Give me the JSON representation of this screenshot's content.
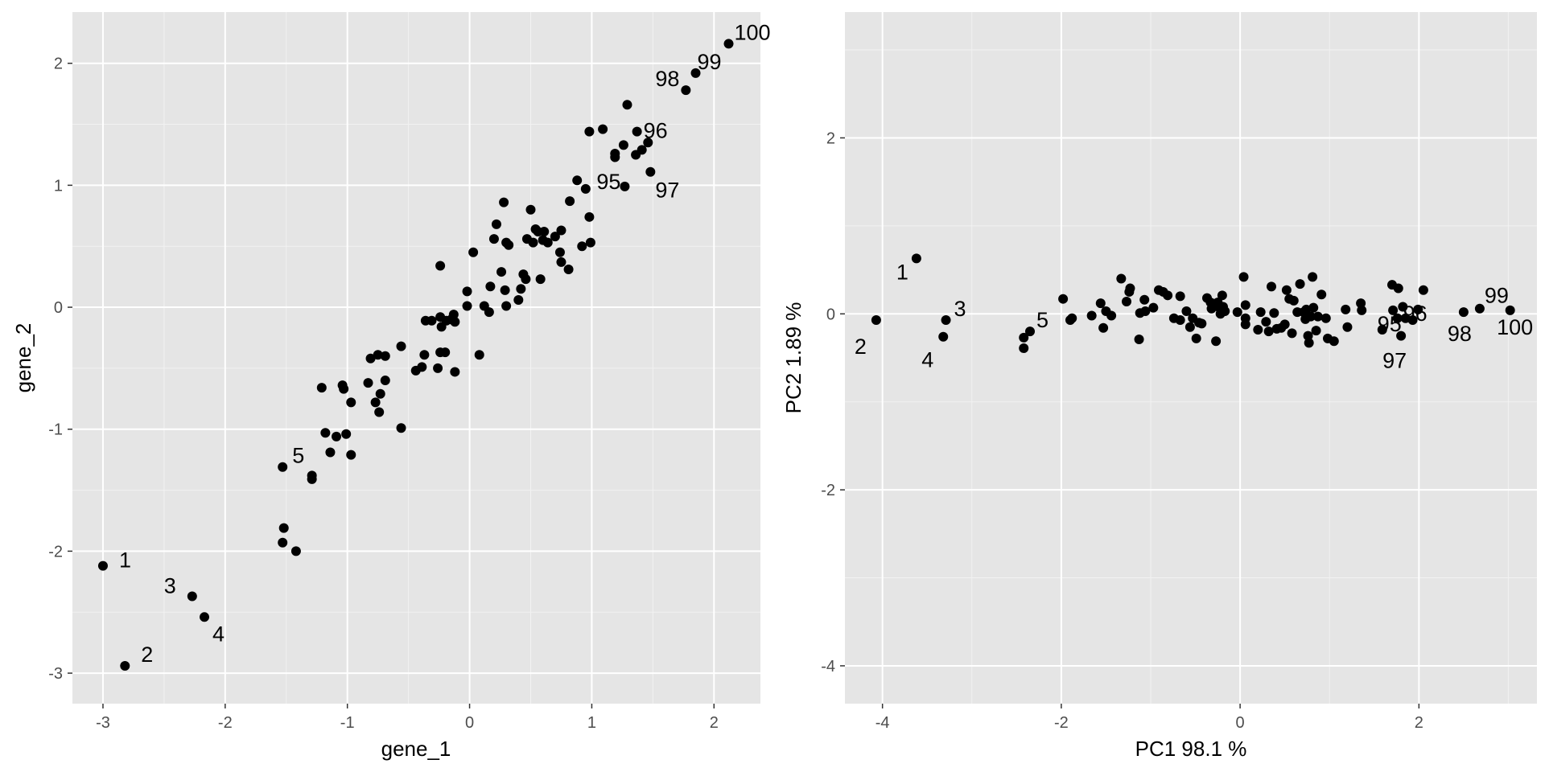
{
  "chart_data": [
    {
      "type": "scatter",
      "xlabel": "gene_1",
      "ylabel": "gene_2",
      "xlim": [
        -3.25,
        2.38
      ],
      "ylim": [
        -3.25,
        2.42
      ],
      "xticks": [
        -3,
        -2,
        -1,
        0,
        1,
        2
      ],
      "yticks": [
        -3,
        -2,
        -1,
        0,
        1,
        2
      ],
      "grid": true,
      "points": [
        {
          "x": -3.0,
          "y": -2.12,
          "label": "1"
        },
        {
          "x": -2.82,
          "y": -2.94,
          "label": "2"
        },
        {
          "x": -2.27,
          "y": -2.37,
          "label": "3"
        },
        {
          "x": -2.17,
          "y": -2.54,
          "label": "4"
        },
        {
          "x": -1.53,
          "y": -1.31,
          "label": "5"
        },
        {
          "x": 1.27,
          "y": 0.99,
          "label": "95"
        },
        {
          "x": 1.37,
          "y": 1.44,
          "label": "96"
        },
        {
          "x": 1.48,
          "y": 1.11,
          "label": "97"
        },
        {
          "x": 1.77,
          "y": 1.78,
          "label": "98"
        },
        {
          "x": 1.85,
          "y": 1.92,
          "label": "99"
        },
        {
          "x": 2.12,
          "y": 2.16,
          "label": "100"
        },
        {
          "x": -1.52,
          "y": -1.81
        },
        {
          "x": -1.53,
          "y": -1.93
        },
        {
          "x": -1.42,
          "y": -2.0
        },
        {
          "x": -1.29,
          "y": -1.38
        },
        {
          "x": -1.29,
          "y": -1.41
        },
        {
          "x": -1.21,
          "y": -0.66
        },
        {
          "x": -1.18,
          "y": -1.03
        },
        {
          "x": -1.14,
          "y": -1.19
        },
        {
          "x": -1.09,
          "y": -1.06
        },
        {
          "x": -1.04,
          "y": -0.64
        },
        {
          "x": -1.03,
          "y": -0.67
        },
        {
          "x": -1.01,
          "y": -1.04
        },
        {
          "x": -0.97,
          "y": -0.78
        },
        {
          "x": -0.97,
          "y": -1.21
        },
        {
          "x": -0.83,
          "y": -0.62
        },
        {
          "x": -0.81,
          "y": -0.42
        },
        {
          "x": -0.77,
          "y": -0.78
        },
        {
          "x": -0.75,
          "y": -0.39
        },
        {
          "x": -0.74,
          "y": -0.86
        },
        {
          "x": -0.73,
          "y": -0.71
        },
        {
          "x": -0.69,
          "y": -0.6
        },
        {
          "x": -0.69,
          "y": -0.4
        },
        {
          "x": -0.56,
          "y": -0.99
        },
        {
          "x": -0.56,
          "y": -0.32
        },
        {
          "x": -0.44,
          "y": -0.52
        },
        {
          "x": -0.39,
          "y": -0.49
        },
        {
          "x": -0.37,
          "y": -0.39
        },
        {
          "x": -0.36,
          "y": -0.11
        },
        {
          "x": -0.31,
          "y": -0.11
        },
        {
          "x": -0.26,
          "y": -0.5
        },
        {
          "x": -0.24,
          "y": -0.37
        },
        {
          "x": -0.24,
          "y": -0.08
        },
        {
          "x": -0.23,
          "y": -0.16
        },
        {
          "x": -0.2,
          "y": -0.37
        },
        {
          "x": -0.19,
          "y": -0.11
        },
        {
          "x": -0.15,
          "y": -0.1
        },
        {
          "x": -0.13,
          "y": -0.06
        },
        {
          "x": -0.12,
          "y": -0.53
        },
        {
          "x": -0.12,
          "y": -0.12
        },
        {
          "x": -0.24,
          "y": 0.34
        },
        {
          "x": -0.02,
          "y": 0.13
        },
        {
          "x": -0.02,
          "y": 0.01
        },
        {
          "x": 0.03,
          "y": 0.45
        },
        {
          "x": 0.08,
          "y": -0.39
        },
        {
          "x": 0.12,
          "y": 0.01
        },
        {
          "x": 0.16,
          "y": -0.04
        },
        {
          "x": 0.17,
          "y": 0.17
        },
        {
          "x": 0.2,
          "y": 0.56
        },
        {
          "x": 0.22,
          "y": 0.68
        },
        {
          "x": 0.26,
          "y": 0.29
        },
        {
          "x": 0.28,
          "y": 0.86
        },
        {
          "x": 0.29,
          "y": 0.14
        },
        {
          "x": 0.3,
          "y": 0.01
        },
        {
          "x": 0.3,
          "y": 0.53
        },
        {
          "x": 0.32,
          "y": 0.51
        },
        {
          "x": 0.4,
          "y": 0.06
        },
        {
          "x": 0.42,
          "y": 0.15
        },
        {
          "x": 0.44,
          "y": 0.27
        },
        {
          "x": 0.46,
          "y": 0.23
        },
        {
          "x": 0.47,
          "y": 0.56
        },
        {
          "x": 0.5,
          "y": 0.8
        },
        {
          "x": 0.52,
          "y": 0.53
        },
        {
          "x": 0.54,
          "y": 0.64
        },
        {
          "x": 0.56,
          "y": 0.62
        },
        {
          "x": 0.58,
          "y": 0.23
        },
        {
          "x": 0.6,
          "y": 0.55
        },
        {
          "x": 0.61,
          "y": 0.62
        },
        {
          "x": 0.64,
          "y": 0.53
        },
        {
          "x": 0.7,
          "y": 0.58
        },
        {
          "x": 0.74,
          "y": 0.45
        },
        {
          "x": 0.75,
          "y": 0.63
        },
        {
          "x": 0.75,
          "y": 0.37
        },
        {
          "x": 0.81,
          "y": 0.31
        },
        {
          "x": 0.82,
          "y": 0.87
        },
        {
          "x": 0.88,
          "y": 1.04
        },
        {
          "x": 0.92,
          "y": 0.5
        },
        {
          "x": 0.95,
          "y": 0.97
        },
        {
          "x": 0.98,
          "y": 1.44
        },
        {
          "x": 0.98,
          "y": 0.74
        },
        {
          "x": 0.99,
          "y": 0.53
        },
        {
          "x": 1.09,
          "y": 1.46
        },
        {
          "x": 1.19,
          "y": 1.26
        },
        {
          "x": 1.19,
          "y": 1.23
        },
        {
          "x": 1.26,
          "y": 1.33
        },
        {
          "x": 1.29,
          "y": 1.66
        },
        {
          "x": 1.36,
          "y": 1.25
        },
        {
          "x": 1.41,
          "y": 1.29
        },
        {
          "x": 1.46,
          "y": 1.35
        }
      ]
    },
    {
      "type": "scatter",
      "xlabel": "PC1  98.1 %",
      "ylabel": "PC2  1.89 %",
      "xlim": [
        -4.42,
        3.32
      ],
      "ylim": [
        -4.43,
        3.43
      ],
      "xticks": [
        -4,
        -2,
        0,
        2
      ],
      "yticks": [
        -4,
        -2,
        0,
        2
      ],
      "grid": true,
      "points": [
        {
          "x": -3.62,
          "y": 0.63,
          "label": "1"
        },
        {
          "x": -4.07,
          "y": -0.07,
          "label": "2"
        },
        {
          "x": -3.29,
          "y": -0.07,
          "label": "3"
        },
        {
          "x": -3.32,
          "y": -0.26,
          "label": "4"
        },
        {
          "x": -2.35,
          "y": -0.2,
          "label": "5"
        },
        {
          "x": 1.59,
          "y": -0.18,
          "label": "95"
        },
        {
          "x": 1.76,
          "y": -0.05,
          "label": "96"
        },
        {
          "x": 1.8,
          "y": -0.25,
          "label": "97"
        },
        {
          "x": 2.5,
          "y": 0.02,
          "label": "98"
        },
        {
          "x": 2.68,
          "y": 0.06,
          "label": "99"
        },
        {
          "x": 3.02,
          "y": 0.04,
          "label": "100"
        },
        {
          "x": -2.42,
          "y": -0.27
        },
        {
          "x": -2.42,
          "y": -0.39
        },
        {
          "x": -1.98,
          "y": 0.17
        },
        {
          "x": -1.9,
          "y": -0.07
        },
        {
          "x": -1.88,
          "y": -0.05
        },
        {
          "x": -1.66,
          "y": -0.02
        },
        {
          "x": -1.56,
          "y": 0.12
        },
        {
          "x": -1.53,
          "y": -0.16
        },
        {
          "x": -1.5,
          "y": 0.03
        },
        {
          "x": -1.44,
          "y": -0.02
        },
        {
          "x": -1.33,
          "y": 0.4
        },
        {
          "x": -1.27,
          "y": 0.14
        },
        {
          "x": -1.24,
          "y": 0.25
        },
        {
          "x": -1.23,
          "y": 0.29
        },
        {
          "x": -1.13,
          "y": -0.29
        },
        {
          "x": -1.12,
          "y": 0.01
        },
        {
          "x": -1.07,
          "y": 0.16
        },
        {
          "x": -1.06,
          "y": 0.03
        },
        {
          "x": -0.97,
          "y": 0.07
        },
        {
          "x": -0.91,
          "y": 0.27
        },
        {
          "x": -0.86,
          "y": 0.25
        },
        {
          "x": -0.81,
          "y": 0.21
        },
        {
          "x": -0.74,
          "y": -0.05
        },
        {
          "x": -0.67,
          "y": -0.07
        },
        {
          "x": -0.67,
          "y": 0.2
        },
        {
          "x": -0.6,
          "y": 0.03
        },
        {
          "x": -0.56,
          "y": -0.15
        },
        {
          "x": -0.53,
          "y": -0.05
        },
        {
          "x": -0.49,
          "y": -0.28
        },
        {
          "x": -0.46,
          "y": -0.1
        },
        {
          "x": -0.43,
          "y": -0.11
        },
        {
          "x": -0.37,
          "y": 0.18
        },
        {
          "x": -0.33,
          "y": 0.13
        },
        {
          "x": -0.32,
          "y": 0.06
        },
        {
          "x": -0.27,
          "y": -0.31
        },
        {
          "x": -0.25,
          "y": 0.13
        },
        {
          "x": -0.23,
          "y": 0.07
        },
        {
          "x": -0.22,
          "y": 0.0
        },
        {
          "x": -0.2,
          "y": 0.21
        },
        {
          "x": -0.19,
          "y": 0.08
        },
        {
          "x": -0.17,
          "y": 0.03
        },
        {
          "x": -0.03,
          "y": 0.02
        },
        {
          "x": 0.04,
          "y": 0.42
        },
        {
          "x": 0.06,
          "y": -0.12
        },
        {
          "x": 0.06,
          "y": -0.05
        },
        {
          "x": 0.06,
          "y": 0.1
        },
        {
          "x": 0.2,
          "y": -0.18
        },
        {
          "x": 0.23,
          "y": 0.02
        },
        {
          "x": 0.29,
          "y": -0.09
        },
        {
          "x": 0.32,
          "y": -0.2
        },
        {
          "x": 0.35,
          "y": 0.31
        },
        {
          "x": 0.38,
          "y": 0.01
        },
        {
          "x": 0.41,
          "y": -0.17
        },
        {
          "x": 0.46,
          "y": -0.16
        },
        {
          "x": 0.5,
          "y": -0.12
        },
        {
          "x": 0.52,
          "y": 0.27
        },
        {
          "x": 0.55,
          "y": 0.17
        },
        {
          "x": 0.58,
          "y": -0.22
        },
        {
          "x": 0.6,
          "y": 0.15
        },
        {
          "x": 0.64,
          "y": 0.02
        },
        {
          "x": 0.67,
          "y": 0.34
        },
        {
          "x": 0.71,
          "y": 0.02
        },
        {
          "x": 0.73,
          "y": -0.06
        },
        {
          "x": 0.74,
          "y": 0.05
        },
        {
          "x": 0.76,
          "y": -0.25
        },
        {
          "x": 0.77,
          "y": -0.33
        },
        {
          "x": 0.79,
          "y": -0.03
        },
        {
          "x": 0.81,
          "y": 0.42
        },
        {
          "x": 0.82,
          "y": 0.07
        },
        {
          "x": 0.85,
          "y": -0.19
        },
        {
          "x": 0.87,
          "y": -0.03
        },
        {
          "x": 0.91,
          "y": 0.22
        },
        {
          "x": 0.96,
          "y": -0.05
        },
        {
          "x": 0.98,
          "y": -0.28
        },
        {
          "x": 1.05,
          "y": -0.31
        },
        {
          "x": 1.18,
          "y": 0.05
        },
        {
          "x": 1.2,
          "y": -0.15
        },
        {
          "x": 1.35,
          "y": 0.12
        },
        {
          "x": 1.36,
          "y": 0.04
        },
        {
          "x": 1.7,
          "y": 0.33
        },
        {
          "x": 1.71,
          "y": 0.04
        },
        {
          "x": 1.77,
          "y": 0.29
        },
        {
          "x": 1.82,
          "y": 0.08
        },
        {
          "x": 1.85,
          "y": -0.05
        },
        {
          "x": 1.93,
          "y": -0.07
        },
        {
          "x": 1.99,
          "y": 0.05
        },
        {
          "x": 2.05,
          "y": 0.27
        }
      ]
    }
  ]
}
